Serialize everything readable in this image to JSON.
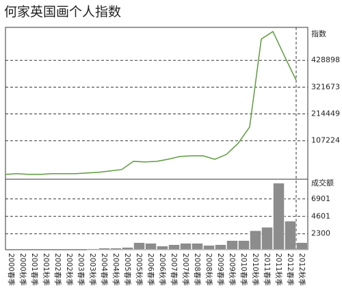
{
  "chart_data": [
    {
      "type": "line",
      "title": "何家英国画个人指数",
      "y_label": "指数",
      "color": "#5b9b3c",
      "categories": [
        "2000春季",
        "2000秋季",
        "2001春季",
        "2001秋季",
        "2002春季",
        "2002秋季",
        "2003春季",
        "2003秋季",
        "2004春季",
        "2004秋季",
        "2005春季",
        "2005秋季",
        "2006春季",
        "2006秋季",
        "2007春季",
        "2007秋季",
        "2008春季",
        "2008秋季",
        "2009春季",
        "2009秋季",
        "2010春季",
        "2010秋季",
        "2011春季",
        "2011秋季",
        "2012春季",
        "2012秋季"
      ],
      "values": [
        -27500,
        -24700,
        -27500,
        -27500,
        -24700,
        -24700,
        -24700,
        -22000,
        -19200,
        -13700,
        -8200,
        24700,
        22000,
        24700,
        33000,
        44000,
        46700,
        46700,
        33000,
        52200,
        96200,
        162200,
        514100,
        544300,
        445400,
        349100
      ],
      "ylim": [
        -47000,
        561000
      ],
      "yticks": [
        107224,
        214449,
        321673,
        428898
      ],
      "grid": true
    },
    {
      "type": "bar",
      "y_label": "成交额",
      "color": "#8c8c8c",
      "values": [
        200,
        200,
        200,
        200,
        200,
        200,
        200,
        320,
        410,
        410,
        500,
        1130,
        1040,
        680,
        860,
        1040,
        1040,
        770,
        860,
        1400,
        1400,
        2700,
        3160,
        8976,
        3970,
        1130
      ],
      "ylim": [
        200,
        9500
      ],
      "yticks": [
        2300,
        4601,
        6901
      ],
      "grid": true
    }
  ]
}
